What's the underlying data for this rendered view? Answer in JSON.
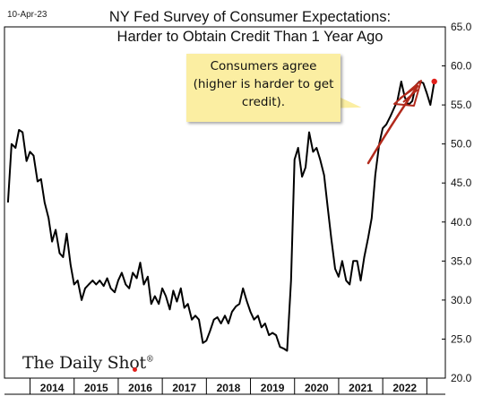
{
  "date_stamp": "10-Apr-23",
  "title_line1": "NY Fed Survey of Consumer Expectations:",
  "title_line2": "Harder to Obtain Credit Than 1 Year Ago",
  "callout": {
    "line1": "Consumers agree",
    "line2": "(higher is harder to get",
    "line3": "credit)."
  },
  "logo_text": "The Daily Shot",
  "logo_mark": "®",
  "colors": {
    "line": "#000000",
    "arrow": "#b22a1c",
    "last_point": "#e0201c",
    "callout_bg": "#fbeea2",
    "logo_dot": "#e0201c"
  },
  "chart_data": {
    "type": "line",
    "title": "NY Fed Survey of Consumer Expectations: Harder to Obtain Credit Than 1 Year Ago",
    "xlabel": "",
    "ylabel": "",
    "x_ticks": [
      "2014",
      "2015",
      "2016",
      "2017",
      "2018",
      "2019",
      "2020",
      "2021",
      "2022"
    ],
    "ylim": [
      20.0,
      65.0
    ],
    "y_ticks": [
      "20.0",
      "25.0",
      "30.0",
      "35.0",
      "40.0",
      "45.0",
      "50.0",
      "55.0",
      "60.0",
      "65.0"
    ],
    "grid": false,
    "y_axis_side": "right",
    "series": [
      {
        "x": [
          2013.5,
          2013.58,
          2013.67,
          2013.75,
          2013.83,
          2013.92,
          2014.0,
          2014.08,
          2014.17,
          2014.25,
          2014.33,
          2014.42,
          2014.5,
          2014.58,
          2014.67,
          2014.75,
          2014.83,
          2014.92,
          2015.0,
          2015.08,
          2015.17,
          2015.25,
          2015.33,
          2015.42,
          2015.5,
          2015.58,
          2015.67,
          2015.75,
          2015.83,
          2015.92,
          2016.0,
          2016.08,
          2016.17,
          2016.25,
          2016.33,
          2016.42,
          2016.5,
          2016.58,
          2016.67,
          2016.75,
          2016.83,
          2016.92,
          2017.0,
          2017.08,
          2017.17,
          2017.25,
          2017.33,
          2017.42,
          2017.5,
          2017.58,
          2017.67,
          2017.75,
          2017.83,
          2017.92,
          2018.0,
          2018.08,
          2018.17,
          2018.25,
          2018.33,
          2018.42,
          2018.5,
          2018.58,
          2018.67,
          2018.75,
          2018.83,
          2018.92,
          2019.0,
          2019.08,
          2019.17,
          2019.25,
          2019.33,
          2019.42,
          2019.5,
          2019.58,
          2019.67,
          2019.75,
          2019.83,
          2019.92,
          2020.0,
          2020.08,
          2020.17,
          2020.25,
          2020.33,
          2020.42,
          2020.5,
          2020.58,
          2020.67,
          2020.75,
          2020.83,
          2020.92,
          2021.0,
          2021.08,
          2021.17,
          2021.25,
          2021.33,
          2021.42,
          2021.5,
          2021.58,
          2021.67,
          2021.75,
          2021.83,
          2021.92,
          2022.0,
          2022.08,
          2022.17,
          2022.25,
          2022.33,
          2022.42,
          2022.5,
          2022.58,
          2022.67,
          2022.75,
          2022.83,
          2022.92,
          2023.0,
          2023.08,
          2023.17
        ],
        "y": [
          42.5,
          50.0,
          49.5,
          51.8,
          51.5,
          47.8,
          49.0,
          48.5,
          45.2,
          45.5,
          42.5,
          40.5,
          37.5,
          39.0,
          36.0,
          35.5,
          38.5,
          34.5,
          32.0,
          32.5,
          30.0,
          31.5,
          32.0,
          32.5,
          32.0,
          32.5,
          31.8,
          32.8,
          31.5,
          31.0,
          32.5,
          33.5,
          32.0,
          31.5,
          33.5,
          32.8,
          34.8,
          32.0,
          33.0,
          29.5,
          30.5,
          29.5,
          31.5,
          30.5,
          28.8,
          31.2,
          29.8,
          31.5,
          29.0,
          29.5,
          27.5,
          28.0,
          27.5,
          24.5,
          24.8,
          26.0,
          27.5,
          27.8,
          27.0,
          28.0,
          27.0,
          28.5,
          29.2,
          29.5,
          31.5,
          29.8,
          28.5,
          27.5,
          28.0,
          26.5,
          27.0,
          25.5,
          25.8,
          25.5,
          24.0,
          23.8,
          23.5,
          32.5,
          48.0,
          49.5,
          45.8,
          47.0,
          51.5,
          49.0,
          49.5,
          48.0,
          46.0,
          42.0,
          38.0,
          34.0,
          33.0,
          35.0,
          32.5,
          32.0,
          35.0,
          35.0,
          32.5,
          35.5,
          38.0,
          40.5,
          46.0,
          50.0,
          52.0,
          52.5,
          53.5,
          54.5,
          55.5,
          58.0,
          56.0,
          55.0,
          55.5,
          57.5,
          58.0,
          57.8,
          56.5,
          55.0,
          58.0
        ]
      }
    ]
  }
}
